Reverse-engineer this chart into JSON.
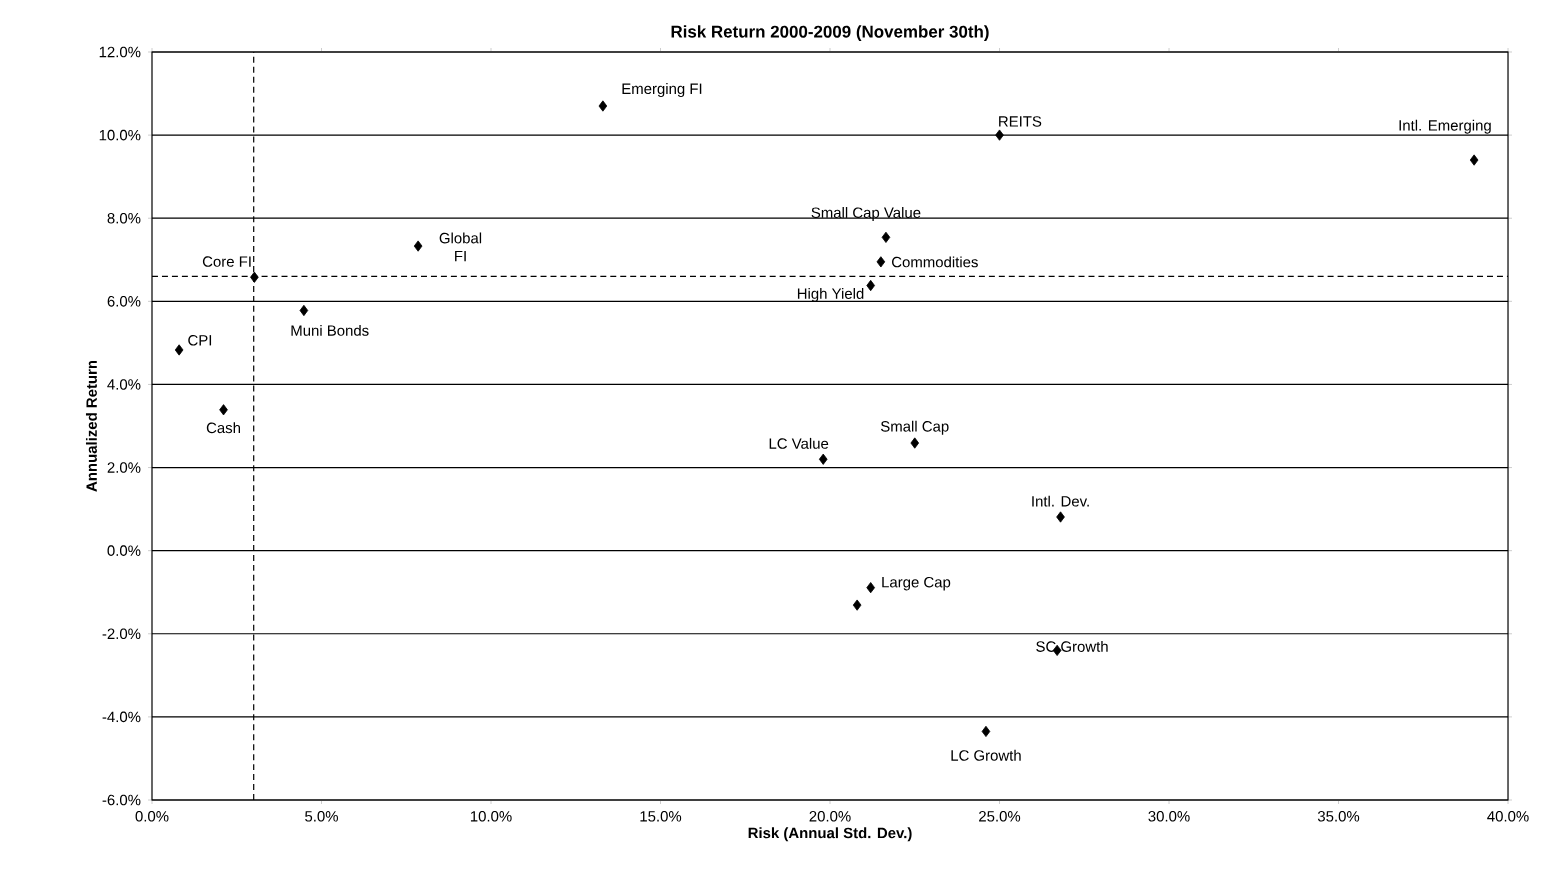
{
  "chart_data": {
    "type": "scatter",
    "title": "Risk Return 2000-2009 (November 30th)",
    "xlabel": "Risk (Annual Std. Dev.)",
    "ylabel": "Annualized Return",
    "x": [
      13.3,
      25.0,
      39.0,
      7.85,
      3.02,
      21.65,
      21.5,
      21.2,
      4.48,
      0.8,
      2.11,
      19.8,
      22.5,
      26.8,
      21.2,
      20.8,
      26.7,
      24.6
    ],
    "values": [
      10.7,
      10.0,
      9.4,
      7.33,
      6.58,
      7.54,
      6.95,
      6.38,
      5.78,
      4.83,
      3.39,
      2.2,
      2.59,
      0.81,
      -0.89,
      -1.31,
      -2.4,
      -4.35
    ],
    "color": "#000000",
    "marker": "diamond",
    "grid": "y",
    "xlim": [
      0,
      40
    ],
    "ylim": [
      -6,
      12
    ],
    "xticks": [
      {
        "value": 0,
        "label": "0.0%"
      },
      {
        "value": 5,
        "label": "5.0%"
      },
      {
        "value": 10,
        "label": "10.0%"
      },
      {
        "value": 15,
        "label": "15.0%"
      },
      {
        "value": 20,
        "label": "20.0%"
      },
      {
        "value": 25,
        "label": "25.0%"
      },
      {
        "value": 30,
        "label": "30.0%"
      },
      {
        "value": 35,
        "label": "35.0%"
      },
      {
        "value": 40,
        "label": "40.0%"
      }
    ],
    "yticks": [
      {
        "value": -6,
        "label": "-6.0%"
      },
      {
        "value": -4,
        "label": "-4.0%"
      },
      {
        "value": -2,
        "label": "-2.0%"
      },
      {
        "value": 0,
        "label": "0.0%"
      },
      {
        "value": 2,
        "label": "2.0%"
      },
      {
        "value": 4,
        "label": "4.0%"
      },
      {
        "value": 6,
        "label": "6.0%"
      },
      {
        "value": 8,
        "label": "8.0%"
      },
      {
        "value": 10,
        "label": "10.0%"
      },
      {
        "value": 12,
        "label": "12.0%"
      }
    ],
    "ref_lines": [
      {
        "axis": "x",
        "value": 3.0,
        "line_style": "dashed"
      },
      {
        "axis": "y",
        "value": 6.6,
        "line_style": "dashed"
      }
    ],
    "annotations": [
      {
        "text": "Emerging FI",
        "x": 13.3,
        "y": 10.7
      },
      {
        "text": "REITS",
        "x": 25.0,
        "y": 10.0
      },
      {
        "text": "Intl. Emerging",
        "x": 39.0,
        "y": 9.4
      },
      {
        "text": "Global FI",
        "x": 7.85,
        "y": 7.33
      },
      {
        "text": "Core FI",
        "x": 3.02,
        "y": 6.58
      },
      {
        "text": "Small Cap Value",
        "x": 21.65,
        "y": 7.54
      },
      {
        "text": "Commodities",
        "x": 21.5,
        "y": 6.95
      },
      {
        "text": "High Yield",
        "x": 21.2,
        "y": 6.38
      },
      {
        "text": "Muni Bonds",
        "x": 4.48,
        "y": 5.78
      },
      {
        "text": "CPI",
        "x": 0.8,
        "y": 4.83
      },
      {
        "text": "Cash",
        "x": 2.11,
        "y": 3.39
      },
      {
        "text": "LC Value",
        "x": 19.8,
        "y": 2.2
      },
      {
        "text": "Small Cap",
        "x": 22.5,
        "y": 2.59
      },
      {
        "text": "Intl. Dev.",
        "x": 26.8,
        "y": 0.81
      },
      {
        "text": "Large Cap",
        "x": 21.2,
        "y": -0.89
      },
      {
        "text": "SC Growth",
        "x": 26.7,
        "y": -2.4
      },
      {
        "text": "LC Growth",
        "x": 24.6,
        "y": -4.35
      }
    ]
  }
}
